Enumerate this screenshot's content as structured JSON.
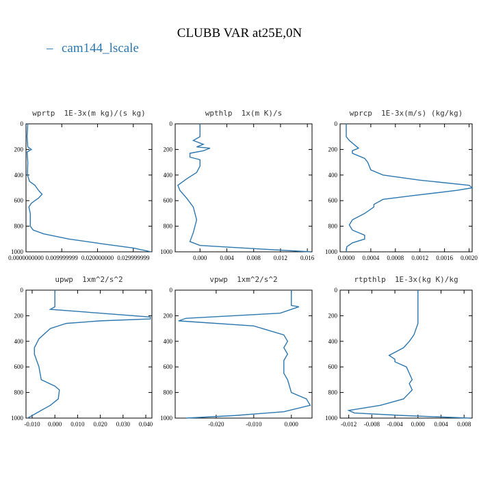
{
  "title": "CLUBB VAR at25E,0N",
  "legend": {
    "name": "cam144_lscale",
    "color": "#2b77b0"
  },
  "chart_data": [
    {
      "type": "line",
      "title": "wprtp  1E-3x(m kg)/(s kg)",
      "xlim": [
        0,
        0.0352
      ],
      "ylim": [
        1000,
        0
      ],
      "xticks": [
        {
          "value": 0,
          "label": "0.0000000000"
        },
        {
          "value": 0.01,
          "label": "0.009999999"
        },
        {
          "value": 0.02,
          "label": "0.020000000"
        },
        {
          "value": 0.03,
          "label": "0.029999999"
        }
      ],
      "yticks": [
        0,
        200,
        400,
        600,
        800,
        1000
      ],
      "y": [
        0,
        100,
        180,
        200,
        220,
        300,
        400,
        450,
        480,
        520,
        550,
        580,
        620,
        650,
        700,
        800,
        830,
        860,
        900,
        940,
        970,
        1000
      ],
      "values": [
        0.0005,
        0.0003,
        0.0005,
        0.0015,
        0.0003,
        0.0005,
        0.0004,
        0.001,
        0.0025,
        0.0035,
        0.0045,
        0.0035,
        0.0015,
        0.0008,
        0.0012,
        0.0012,
        0.002,
        0.005,
        0.012,
        0.022,
        0.03,
        0.035
      ]
    },
    {
      "type": "line",
      "title": "wpthlp  1x(m K)/s",
      "xlim": [
        -0.0037,
        0.0167
      ],
      "ylim": [
        1000,
        0
      ],
      "xticks": [
        {
          "value": 0,
          "label": "0.000"
        },
        {
          "value": 0.004,
          "label": "0.004"
        },
        {
          "value": 0.008,
          "label": "0.008"
        },
        {
          "value": 0.012,
          "label": "0.012"
        },
        {
          "value": 0.016,
          "label": "0.016"
        }
      ],
      "yticks": [
        0,
        200,
        400,
        600,
        800,
        1000
      ],
      "y": [
        0,
        100,
        130,
        160,
        180,
        190,
        210,
        230,
        260,
        280,
        330,
        380,
        430,
        480,
        520,
        580,
        650,
        750,
        850,
        920,
        950,
        975,
        1000
      ],
      "values": [
        0,
        0,
        -0.001,
        0.0005,
        -0.0005,
        0.0015,
        0.0005,
        -0.0015,
        -0.0015,
        0,
        0,
        -0.0005,
        -0.002,
        -0.0033,
        -0.003,
        -0.002,
        -0.001,
        -0.0005,
        -0.001,
        -0.0015,
        0,
        0.008,
        0.0165
      ]
    },
    {
      "type": "line",
      "title": "wprcp  1E-3x(m/s) (kg/kg)",
      "xlim": [
        -0.0001,
        0.00205
      ],
      "ylim": [
        1000,
        0
      ],
      "xticks": [
        {
          "value": 0,
          "label": "0.0000"
        },
        {
          "value": 0.0004,
          "label": "0.0004"
        },
        {
          "value": 0.0008,
          "label": "0.0008"
        },
        {
          "value": 0.0012,
          "label": "0.0012"
        },
        {
          "value": 0.0016,
          "label": "0.0016"
        },
        {
          "value": 0.002,
          "label": "0.0020"
        }
      ],
      "yticks": [
        0,
        200,
        400,
        600,
        800,
        1000
      ],
      "y": [
        0,
        100,
        130,
        150,
        190,
        210,
        230,
        270,
        300,
        360,
        400,
        440,
        480,
        500,
        520,
        560,
        590,
        630,
        650,
        700,
        750,
        790,
        830,
        870,
        900,
        930,
        960,
        1000
      ],
      "values": [
        0,
        0,
        5e-05,
        0.0001,
        0.0002,
        0.0001,
        0.0001,
        0.0003,
        0.00035,
        0.0004,
        0.0006,
        0.0012,
        0.002,
        0.00205,
        0.0018,
        0.0011,
        0.0006,
        0.00045,
        0.00045,
        0.0003,
        0.0001,
        5e-05,
        0.0001,
        0.0003,
        0.0003,
        0.0001,
        1e-05,
        0
      ]
    },
    {
      "type": "line",
      "title": "upwp  1xm^2/s^2",
      "xlim": [
        -0.0127,
        0.0427
      ],
      "ylim": [
        1000,
        0
      ],
      "xticks": [
        {
          "value": -0.01,
          "label": "-0.010"
        },
        {
          "value": 0,
          "label": "0.000"
        },
        {
          "value": 0.01,
          "label": "0.010"
        },
        {
          "value": 0.02,
          "label": "0.020"
        },
        {
          "value": 0.03,
          "label": "0.030"
        },
        {
          "value": 0.04,
          "label": "0.040"
        }
      ],
      "yticks": [
        0,
        200,
        400,
        600,
        800,
        1000
      ],
      "y": [
        0,
        130,
        150,
        180,
        210,
        225,
        240,
        260,
        300,
        380,
        450,
        500,
        550,
        600,
        700,
        750,
        780,
        850,
        900,
        950,
        1000
      ],
      "values": [
        0,
        0,
        -0.002,
        0.02,
        0.042,
        0.042,
        0.02,
        0.005,
        -0.002,
        -0.007,
        -0.009,
        -0.009,
        -0.008,
        -0.007,
        -0.006,
        0,
        0.002,
        0.0015,
        -0.002,
        -0.007,
        -0.012
      ]
    },
    {
      "type": "line",
      "title": "vpwp  1xm^2/s^2",
      "xlim": [
        -0.0309,
        0.0055
      ],
      "ylim": [
        1000,
        0
      ],
      "xticks": [
        {
          "value": -0.02,
          "label": "-0.020"
        },
        {
          "value": -0.01,
          "label": "-0.010"
        },
        {
          "value": 0,
          "label": "0.000"
        }
      ],
      "yticks": [
        0,
        200,
        400,
        600,
        800,
        1000
      ],
      "y": [
        0,
        120,
        130,
        180,
        220,
        240,
        250,
        280,
        350,
        400,
        450,
        500,
        550,
        600,
        650,
        700,
        800,
        850,
        900,
        950,
        980,
        1000
      ],
      "values": [
        0,
        0,
        0.002,
        -0.003,
        -0.028,
        -0.03,
        -0.025,
        -0.01,
        -0.002,
        -0.001,
        -0.002,
        -0.001,
        -0.002,
        -0.002,
        -0.002,
        -0.001,
        0,
        0.004,
        0.005,
        -0.002,
        -0.015,
        -0.028
      ]
    },
    {
      "type": "line",
      "title": "rtpthlp  1E-3x(kg K)/kg",
      "xlim": [
        -0.0135,
        0.0094
      ],
      "ylim": [
        1000,
        0
      ],
      "xticks": [
        {
          "value": -0.012,
          "label": "-0.012"
        },
        {
          "value": -0.008,
          "label": "-0.008"
        },
        {
          "value": -0.004,
          "label": "-0.004"
        },
        {
          "value": 0,
          "label": "0.000"
        },
        {
          "value": 0.004,
          "label": "0.004"
        },
        {
          "value": 0.008,
          "label": "0.008"
        }
      ],
      "yticks": [
        0,
        200,
        400,
        600,
        800,
        1000
      ],
      "y": [
        0,
        260,
        350,
        400,
        450,
        510,
        540,
        560,
        600,
        650,
        700,
        730,
        780,
        850,
        900,
        940,
        960,
        980,
        1000
      ],
      "values": [
        0,
        0,
        -0.0007,
        -0.0015,
        -0.0025,
        -0.005,
        -0.004,
        -0.004,
        -0.002,
        -0.0015,
        -0.001,
        -0.0015,
        -0.001,
        -0.0025,
        -0.0065,
        -0.012,
        -0.011,
        -0.0025,
        0.009
      ]
    }
  ]
}
